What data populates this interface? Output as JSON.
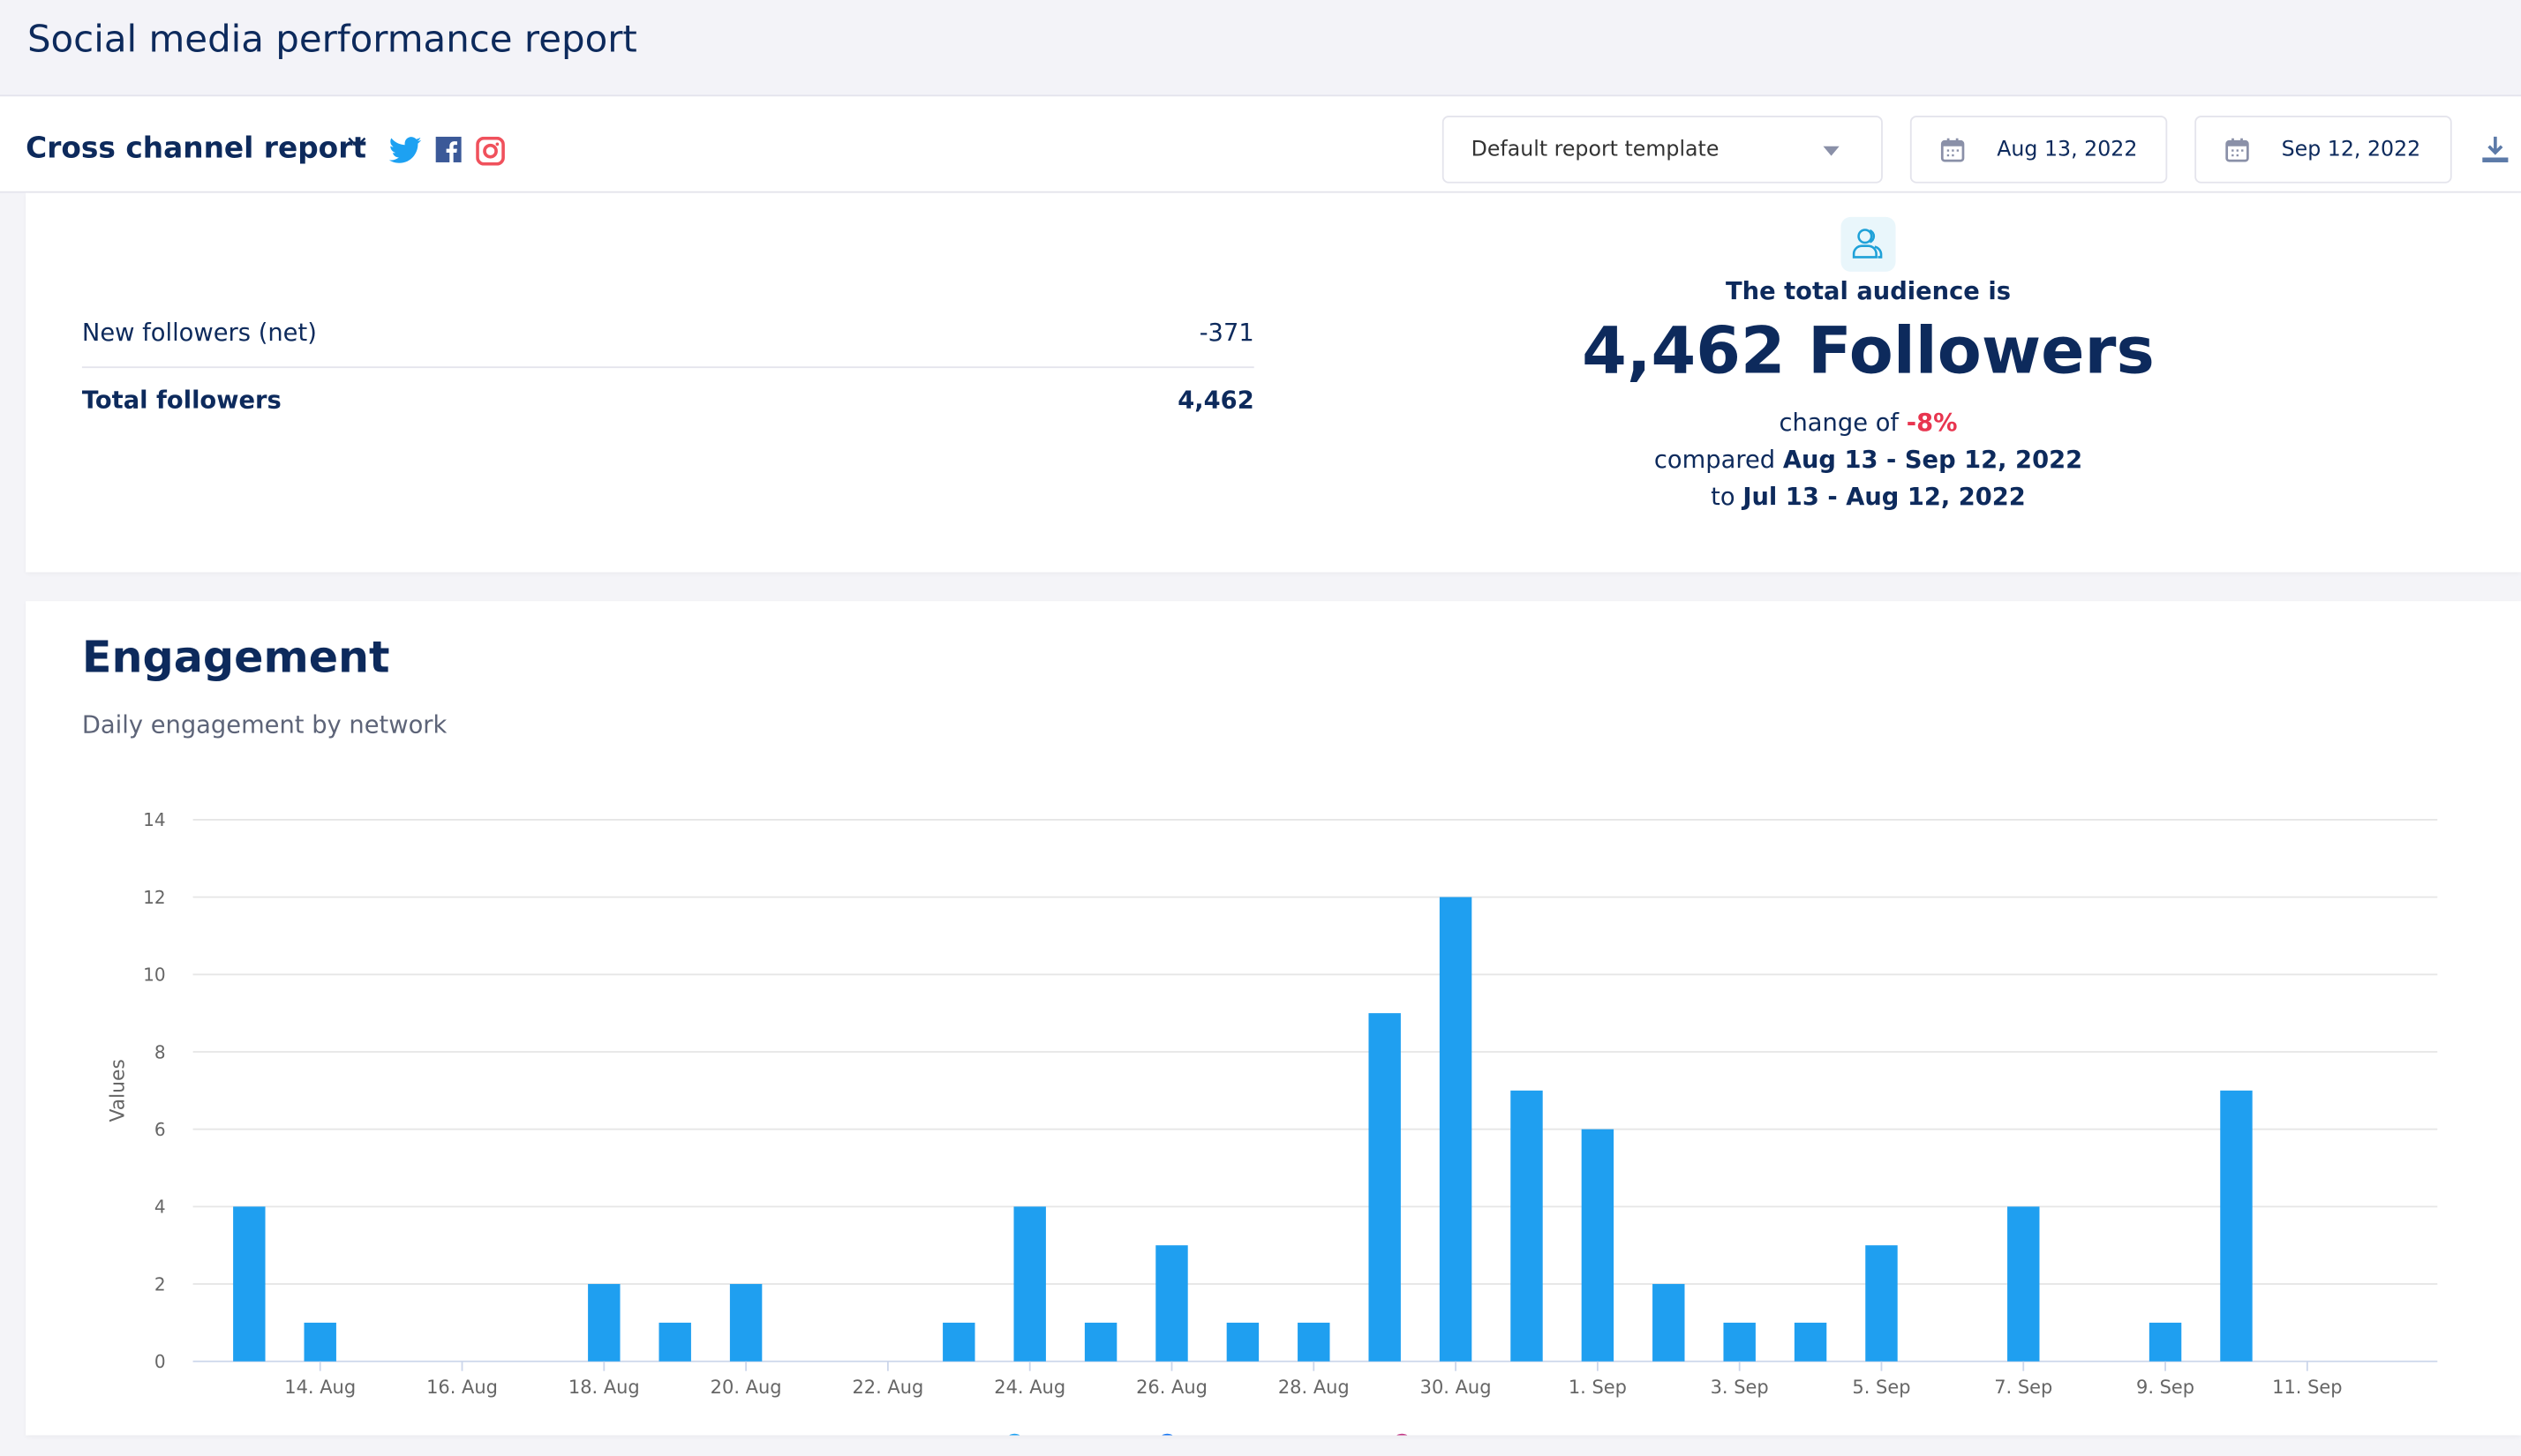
{
  "header": {
    "title": "Social media performance report"
  },
  "toolbar": {
    "report_name": "Cross channel report",
    "networks": [
      "twitter-icon",
      "facebook-icon",
      "instagram-icon"
    ],
    "template_select": "Default report template",
    "start_date": "Aug 13, 2022",
    "end_date": "Sep 12, 2022"
  },
  "followers": {
    "rows": [
      {
        "label": "New followers (net)",
        "value": "-371"
      },
      {
        "label": "Total followers",
        "value": "4,462"
      }
    ]
  },
  "audience": {
    "heading": "The total audience is",
    "big": "4,462 Followers",
    "change_prefix": "change of",
    "change": "-8%",
    "compared_prefix": "compared",
    "compared_range": "Aug 13 - Sep 12, 2022",
    "to_prefix": "to",
    "to_range": "Jul 13 - Aug 12, 2022"
  },
  "engagement": {
    "title": "Engagement",
    "subtitle": "Daily engagement by network"
  },
  "colors": {
    "bar": "#1f9ff0",
    "twitter": "#1da1f2",
    "facebook": "#1877f2",
    "instagram": "#c13584",
    "negative": "#e8354f"
  },
  "chart_data": {
    "type": "bar",
    "ylabel": "Values",
    "xlabel": "",
    "ylim": [
      0,
      14
    ],
    "yticks": [
      0,
      2,
      4,
      6,
      8,
      10,
      12,
      14
    ],
    "grid": true,
    "x_tick_labels": [
      "14. Aug",
      "16. Aug",
      "18. Aug",
      "20. Aug",
      "22. Aug",
      "24. Aug",
      "26. Aug",
      "28. Aug",
      "30. Aug",
      "1. Sep",
      "3. Sep",
      "5. Sep",
      "7. Sep",
      "9. Sep",
      "11. Sep"
    ],
    "categories": [
      "13 Aug",
      "14 Aug",
      "15 Aug",
      "16 Aug",
      "17 Aug",
      "18 Aug",
      "19 Aug",
      "20 Aug",
      "21 Aug",
      "22 Aug",
      "23 Aug",
      "24 Aug",
      "25 Aug",
      "26 Aug",
      "27 Aug",
      "28 Aug",
      "29 Aug",
      "30 Aug",
      "31 Aug",
      "1 Sep",
      "2 Sep",
      "3 Sep",
      "4 Sep",
      "5 Sep",
      "6 Sep",
      "7 Sep",
      "8 Sep",
      "9 Sep",
      "10 Sep",
      "11 Sep",
      "12 Sep"
    ],
    "values": [
      4,
      1,
      0,
      0,
      0,
      2,
      1,
      2,
      0,
      0,
      1,
      4,
      1,
      3,
      1,
      1,
      9,
      12,
      7,
      6,
      2,
      1,
      1,
      3,
      0,
      4,
      0,
      1,
      7,
      0,
      0
    ],
    "legend_placement": "bottom"
  }
}
